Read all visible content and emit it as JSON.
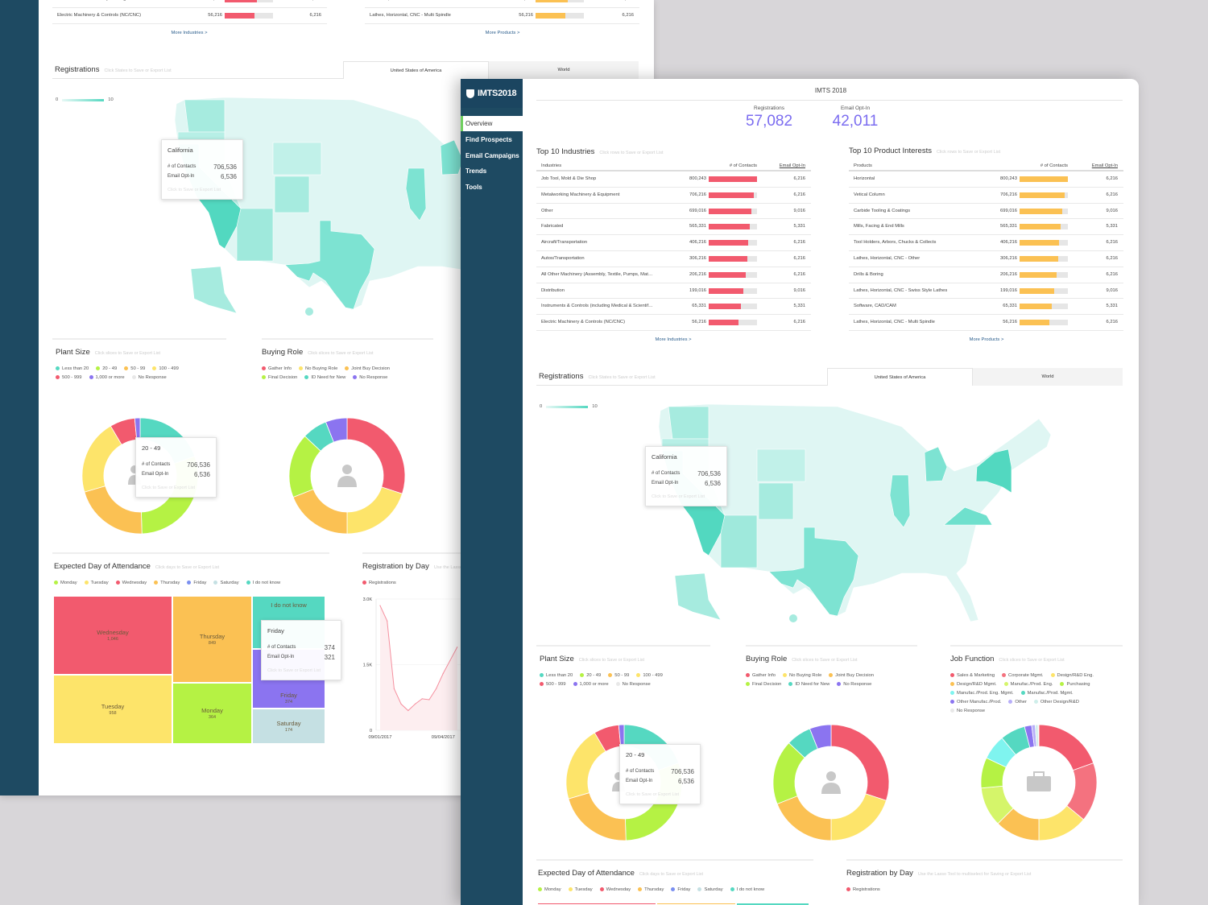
{
  "app": {
    "logo": "IMTS2018",
    "title": "IMTS 2018"
  },
  "nav": [
    {
      "label": "Overview",
      "active": true
    },
    {
      "label": "Find Prospects"
    },
    {
      "label": "Email Campaigns"
    },
    {
      "label": "Trends"
    },
    {
      "label": "Tools"
    }
  ],
  "kpis": [
    {
      "label": "Registrations",
      "value": "57,082"
    },
    {
      "label": "Email Opt-In",
      "value": "42,011"
    }
  ],
  "industries": {
    "title": "Top 10 Industries",
    "hint": "Click rows to Save or Export List",
    "headers": [
      "Industries",
      "# of Contacts",
      "Email Opt-In"
    ],
    "bar_color": "#f25a6e",
    "rows": [
      {
        "name": "Job Tool, Mold & Die Shop",
        "contacts": "800,243",
        "optin": "6,216",
        "bar_fill": 100
      },
      {
        "name": "Metalworking Machinery & Equipment",
        "contacts": "706,216",
        "optin": "6,216",
        "bar_fill": 94
      },
      {
        "name": "Other",
        "contacts": "699,016",
        "optin": "9,016",
        "bar_fill": 89
      },
      {
        "name": "Fabricated",
        "contacts": "565,331",
        "optin": "5,331",
        "bar_fill": 85
      },
      {
        "name": "Aircraft/Transportation",
        "contacts": "406,216",
        "optin": "6,216",
        "bar_fill": 82
      },
      {
        "name": "Autos/Transportation",
        "contacts": "306,216",
        "optin": "6,216",
        "bar_fill": 80
      },
      {
        "name": "All Other Machinery (Assembly, Textile, Pumps, Mat…",
        "contacts": "206,216",
        "optin": "6,216",
        "bar_fill": 77
      },
      {
        "name": "Distribution",
        "contacts": "199,016",
        "optin": "9,016",
        "bar_fill": 72
      },
      {
        "name": "Instruments & Controls (including Medical & Scientif…",
        "contacts": "65,331",
        "optin": "5,331",
        "bar_fill": 67
      },
      {
        "name": "Electric Machinery & Controls (NC/CNC)",
        "contacts": "56,216",
        "optin": "6,216",
        "bar_fill": 62
      }
    ],
    "more": "More Industries >"
  },
  "products": {
    "title": "Top 10 Product Interests",
    "hint": "Click rows to Save or Export List",
    "headers": [
      "Products",
      "# of Contacts",
      "Email Opt-In"
    ],
    "bar_color": "#fbc153",
    "rows": [
      {
        "name": "Horizontal",
        "contacts": "800,243",
        "optin": "6,216",
        "bar_fill": 100
      },
      {
        "name": "Vetical Column",
        "contacts": "706,216",
        "optin": "6,216",
        "bar_fill": 94
      },
      {
        "name": "Carbide Tooling & Coatings",
        "contacts": "699,016",
        "optin": "9,016",
        "bar_fill": 89
      },
      {
        "name": "Mills, Facing & End Mills",
        "contacts": "565,331",
        "optin": "5,331",
        "bar_fill": 85
      },
      {
        "name": "Tool Holders, Arbors, Chucks & Collects",
        "contacts": "406,216",
        "optin": "6,216",
        "bar_fill": 82
      },
      {
        "name": "Lathes, Horizontal, CNC - Other",
        "contacts": "306,216",
        "optin": "6,216",
        "bar_fill": 80
      },
      {
        "name": "Drills & Boring",
        "contacts": "206,216",
        "optin": "6,216",
        "bar_fill": 77
      },
      {
        "name": "Lathes, Horizontal, CNC - Swiss Style Lathes",
        "contacts": "199,016",
        "optin": "9,016",
        "bar_fill": 72
      },
      {
        "name": "Software, CAD/CAM",
        "contacts": "65,331",
        "optin": "5,331",
        "bar_fill": 67
      },
      {
        "name": "Lathes, Horizontal, CNC - Multi Spindle",
        "contacts": "56,216",
        "optin": "6,216",
        "bar_fill": 62
      }
    ],
    "more": "More Products >"
  },
  "registrations": {
    "title": "Registrations",
    "hint": "Click States to Save or Export List",
    "tabs": [
      "United States of America",
      "World"
    ],
    "active_tab": "United States of America",
    "legend_min": "0",
    "legend_max": "10",
    "map_color": "#55d8c1",
    "tooltip": {
      "title": "California",
      "contacts_label": "# of Contacts",
      "contacts": "706,536",
      "optin_label": "Email Opt-In",
      "optin": "6,536",
      "action": "Click to Save or Export List"
    }
  },
  "plant_size": {
    "title": "Plant Size",
    "hint": "Click slices to Save or Export List",
    "center_icon": "users-icon",
    "legend": [
      {
        "label": "Less than 20",
        "color": "#55d8c1",
        "value": 19.5
      },
      {
        "label": "20 - 49",
        "color": "#b5f244",
        "value": 30
      },
      {
        "label": "50 - 99",
        "color": "#fbc153",
        "value": 21
      },
      {
        "label": "100 - 499",
        "color": "#fde46a",
        "value": 21
      },
      {
        "label": "500 - 999",
        "color": "#f25a6e",
        "value": 7
      },
      {
        "label": "1,000 or more",
        "color": "#8b74f0",
        "value": 1.5
      },
      {
        "label": "No Response",
        "color": "#e8e8e8",
        "value": 0
      }
    ],
    "tooltip": {
      "title": "20 - 49",
      "contacts_label": "# of Contacts",
      "contacts": "706,536",
      "optin_label": "Email Opt-In",
      "optin": "6,536",
      "action": "Click to Save or Export List"
    }
  },
  "buying_role": {
    "title": "Buying Role",
    "hint": "Click slices to Save or Export List",
    "center_icon": "person-icon",
    "legend": [
      {
        "label": "Gather Info",
        "color": "#f25a6e",
        "value": 30
      },
      {
        "label": "No Buying Role",
        "color": "#fde46a",
        "value": 20
      },
      {
        "label": "Joint Buy Decision",
        "color": "#fbc153",
        "value": 19
      },
      {
        "label": "Final Decision",
        "color": "#b5f244",
        "value": 18
      },
      {
        "label": "ID Need for New",
        "color": "#55d8c1",
        "value": 7
      },
      {
        "label": "No Response",
        "color": "#8b74f0",
        "value": 6
      }
    ]
  },
  "job_function": {
    "title": "Job Function",
    "hint": "Click slices to Save or Export List",
    "center_icon": "briefcase-icon",
    "legend": [
      {
        "label": "Sales & Marketing",
        "color": "#f25a6e",
        "value": 19.5
      },
      {
        "label": "Corporate Mgmt.",
        "color": "#f4727f",
        "value": 16.5
      },
      {
        "label": "Design/R&D Eng.",
        "color": "#fde46a",
        "value": 14
      },
      {
        "label": "Design/R&D Mgmt.",
        "color": "#fbc153",
        "value": 12.5
      },
      {
        "label": "Manufac./Prod. Eng.",
        "color": "#d5f56a",
        "value": 11
      },
      {
        "label": "Purchasing",
        "color": "#b5f244",
        "value": 8.5
      },
      {
        "label": "Manufac./Prod. Eng. Mgmt.",
        "color": "#7ff4ef",
        "value": 7
      },
      {
        "label": "Manufac./Prod. Mgmt.",
        "color": "#55d8c1",
        "value": 7
      },
      {
        "label": "Other Manufac./Prod.",
        "color": "#8b74f0",
        "value": 2
      },
      {
        "label": "Other",
        "color": "#b7aef8",
        "value": 1
      },
      {
        "label": "Other Design/R&D",
        "color": "#cfeeea",
        "value": 0.8
      },
      {
        "label": "No Response",
        "color": "#e8e8e8",
        "value": 0.2
      }
    ]
  },
  "attendance": {
    "title": "Expected Day of Attendance",
    "hint": "Click days to Save or Export List",
    "legend": [
      {
        "label": "Monday",
        "color": "#b5f244"
      },
      {
        "label": "Tuesday",
        "color": "#fde46a"
      },
      {
        "label": "Wednesday",
        "color": "#f25a6e"
      },
      {
        "label": "Thursday",
        "color": "#fbc153"
      },
      {
        "label": "Friday",
        "color": "#7a8ff0"
      },
      {
        "label": "Saturday",
        "color": "#c5e0e3"
      },
      {
        "label": "I do not know",
        "color": "#55d8c1"
      }
    ],
    "cells": [
      {
        "label": "Wednesday",
        "value": "1,046",
        "color": "#f25a6e"
      },
      {
        "label": "Tuesday",
        "value": "958",
        "color": "#fde46a"
      },
      {
        "label": "Thursday",
        "value": "849",
        "color": "#fbc153"
      },
      {
        "label": "Monday",
        "value": "364",
        "color": "#b5f244"
      },
      {
        "label": "I do not know",
        "value": "",
        "color": "#55d8c1"
      },
      {
        "label": "Friday",
        "value": "374",
        "color": "#8b74f0"
      },
      {
        "label": "Saturday",
        "value": "174",
        "color": "#c5e0e3"
      }
    ],
    "tooltip": {
      "title": "Friday",
      "contacts_label": "# of Contacts",
      "contacts": "374",
      "optin_label": "Email Opt-In",
      "optin": "321",
      "action": "Click to Save or Export List"
    }
  },
  "reg_by_day": {
    "title": "Registration by Day",
    "hint": "Use the Lasso Tool to multiselect for Saving or Export List",
    "legend": "Registrations"
  },
  "chart_data": {
    "type": "line",
    "series": [
      {
        "name": "Registrations",
        "color": "#f5909f",
        "values": [
          2850,
          2500,
          950,
          600,
          450,
          600,
          720,
          700,
          950,
          1300,
          1600,
          1900
        ]
      }
    ],
    "x_tick_labels": [
      "09/01/2017",
      "09/04/2017"
    ],
    "y_tick_labels": [
      "0",
      "1.5K",
      "3.0K"
    ],
    "ylim": [
      0,
      3000
    ],
    "grid": true
  }
}
